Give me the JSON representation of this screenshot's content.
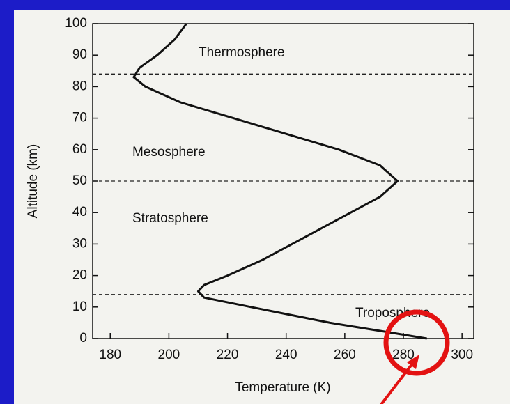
{
  "chart_data": {
    "type": "line",
    "x_label": "Temperature (K)",
    "y_label": "Altitude (km)",
    "x": [
      288,
      275,
      255,
      228,
      212,
      210,
      212,
      220,
      232,
      242,
      252,
      262,
      272,
      278,
      272,
      258,
      240,
      222,
      204,
      192,
      188,
      190,
      196,
      202,
      206
    ],
    "values": [
      0,
      2,
      5,
      10,
      13,
      15,
      17,
      20,
      25,
      30,
      35,
      40,
      45,
      50,
      55,
      60,
      65,
      70,
      75,
      80,
      83,
      86,
      90,
      95,
      100
    ],
    "color": "#111111",
    "xlim": [
      174,
      304
    ],
    "xticks": [
      180,
      200,
      220,
      240,
      260,
      280,
      300
    ],
    "ylim": [
      0,
      100
    ],
    "yticks": [
      0,
      10,
      20,
      30,
      40,
      50,
      60,
      70,
      80,
      90,
      100
    ],
    "boundaries": [
      14,
      50,
      84
    ],
    "layers": [
      "Thermosphere",
      "Mesosphere",
      "Stratosphere",
      "Troposphere"
    ]
  }
}
